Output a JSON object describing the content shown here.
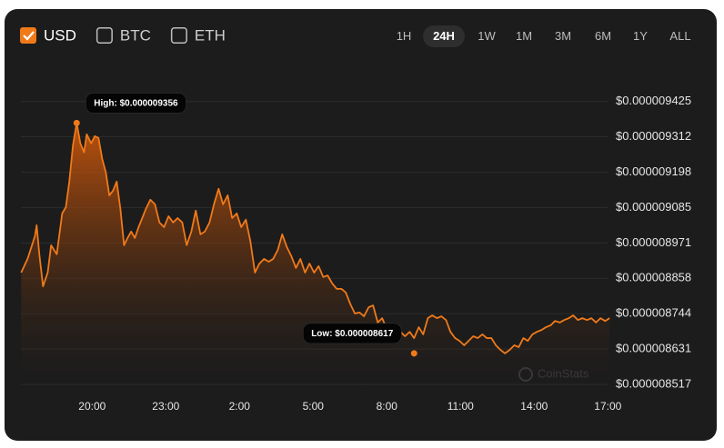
{
  "chart_data": {
    "type": "area",
    "currencies": [
      {
        "label": "USD",
        "checked": true
      },
      {
        "label": "BTC",
        "checked": false
      },
      {
        "label": "ETH",
        "checked": false
      }
    ],
    "ranges": [
      {
        "label": "1H",
        "active": false
      },
      {
        "label": "24H",
        "active": true
      },
      {
        "label": "1W",
        "active": false
      },
      {
        "label": "1M",
        "active": false
      },
      {
        "label": "3M",
        "active": false
      },
      {
        "label": "6M",
        "active": false
      },
      {
        "label": "1Y",
        "active": false
      },
      {
        "label": "ALL",
        "active": false
      }
    ],
    "color": "#f07a1a",
    "grid": true,
    "watermark": "CoinStats",
    "xlim": [
      17.1,
      41.1
    ],
    "ylim": [
      8.5e-06,
      9.5e-06
    ],
    "xticks": [
      {
        "value": 20,
        "label": "20:00"
      },
      {
        "value": 23,
        "label": "23:00"
      },
      {
        "value": 26,
        "label": "2:00"
      },
      {
        "value": 29,
        "label": "5:00"
      },
      {
        "value": 32,
        "label": "8:00"
      },
      {
        "value": 35,
        "label": "11:00"
      },
      {
        "value": 38,
        "label": "14:00"
      },
      {
        "value": 41,
        "label": "17:00"
      }
    ],
    "yticks": [
      {
        "value": 8.517e-06,
        "label": "$0.000008517"
      },
      {
        "value": 8.631e-06,
        "label": "$0.000008631"
      },
      {
        "value": 8.744e-06,
        "label": "$0.000008744"
      },
      {
        "value": 8.858e-06,
        "label": "$0.000008858"
      },
      {
        "value": 8.971e-06,
        "label": "$0.000008971"
      },
      {
        "value": 9.085e-06,
        "label": "$0.000009085"
      },
      {
        "value": 9.198e-06,
        "label": "$0.000009198"
      },
      {
        "value": 9.312e-06,
        "label": "$0.000009312"
      },
      {
        "value": 9.425e-06,
        "label": "$0.000009425"
      }
    ],
    "annotations": [
      {
        "label": "High: $0.000009356",
        "x": 19.37,
        "value": 9.356e-06
      },
      {
        "label": "Low: $0.000008617",
        "x": 33.11,
        "value": 8.617e-06
      }
    ],
    "x": [
      17.11,
      17.37,
      17.67,
      17.74,
      17.85,
      18.0,
      18.19,
      18.33,
      18.56,
      18.78,
      18.93,
      19.07,
      19.22,
      19.37,
      19.52,
      19.67,
      19.78,
      19.96,
      20.11,
      20.26,
      20.41,
      20.56,
      20.7,
      20.85,
      21.0,
      21.15,
      21.3,
      21.44,
      21.59,
      21.74,
      21.89,
      22.04,
      22.19,
      22.37,
      22.56,
      22.74,
      22.93,
      23.11,
      23.3,
      23.48,
      23.67,
      23.85,
      24.04,
      24.22,
      24.41,
      24.59,
      24.78,
      24.96,
      25.15,
      25.33,
      25.52,
      25.7,
      25.89,
      26.07,
      26.26,
      26.44,
      26.63,
      26.81,
      27.0,
      27.19,
      27.37,
      27.56,
      27.74,
      27.93,
      28.11,
      28.3,
      28.48,
      28.67,
      28.85,
      29.04,
      29.22,
      29.41,
      29.59,
      29.78,
      29.96,
      30.15,
      30.33,
      30.52,
      30.7,
      30.89,
      31.07,
      31.26,
      31.44,
      31.63,
      31.81,
      32.0,
      32.19,
      32.37,
      32.56,
      32.74,
      32.93,
      33.11,
      33.3,
      33.48,
      33.67,
      33.85,
      34.04,
      34.22,
      34.41,
      34.59,
      34.78,
      34.96,
      35.15,
      35.33,
      35.52,
      35.7,
      35.89,
      36.07,
      36.26,
      36.44,
      36.63,
      36.81,
      37.0,
      37.19,
      37.37,
      37.56,
      37.74,
      37.93,
      38.11,
      38.3,
      38.48,
      38.67,
      38.85,
      39.04,
      39.22,
      39.41,
      39.59,
      39.78,
      39.96,
      40.15,
      40.33,
      40.52,
      40.7,
      40.89,
      41.07
    ],
    "values": [
      8.876e-06,
      8.92e-06,
      8.993e-06,
      9.028e-06,
      8.935e-06,
      8.832e-06,
      8.876e-06,
      8.964e-06,
      8.935e-06,
      9.066e-06,
      9.086e-06,
      9.168e-06,
      9.285e-06,
      9.356e-06,
      9.291e-06,
      9.262e-06,
      9.32e-06,
      9.291e-06,
      9.314e-06,
      9.308e-06,
      9.241e-06,
      9.197e-06,
      9.124e-06,
      9.139e-06,
      9.168e-06,
      9.081e-06,
      8.964e-06,
      8.987e-06,
      9.008e-06,
      8.987e-06,
      9.022e-06,
      9.051e-06,
      9.081e-06,
      9.11e-06,
      9.095e-06,
      9.037e-06,
      9.022e-06,
      9.057e-06,
      9.037e-06,
      9.051e-06,
      9.037e-06,
      8.964e-06,
      9.008e-06,
      9.075e-06,
      8.999e-06,
      9.008e-06,
      9.037e-06,
      9.095e-06,
      9.145e-06,
      9.095e-06,
      9.124e-06,
      9.051e-06,
      9.066e-06,
      9.022e-06,
      9.046e-06,
      8.978e-06,
      8.876e-06,
      8.905e-06,
      8.92e-06,
      8.911e-06,
      8.92e-06,
      8.949e-06,
      8.999e-06,
      8.958e-06,
      8.929e-06,
      8.891e-06,
      8.92e-06,
      8.876e-06,
      8.905e-06,
      8.876e-06,
      8.897e-06,
      8.862e-06,
      8.867e-06,
      8.841e-06,
      8.824e-06,
      8.824e-06,
      8.812e-06,
      8.774e-06,
      8.745e-06,
      8.748e-06,
      8.736e-06,
      8.765e-06,
      8.771e-06,
      8.716e-06,
      8.73e-06,
      8.695e-06,
      8.707e-06,
      8.707e-06,
      8.686e-06,
      8.672e-06,
      8.686e-06,
      8.666e-06,
      8.701e-06,
      8.678e-06,
      8.73e-06,
      8.739e-06,
      8.73e-06,
      8.736e-06,
      8.724e-06,
      8.686e-06,
      8.666e-06,
      8.657e-06,
      8.643e-06,
      8.657e-06,
      8.672e-06,
      8.666e-06,
      8.678e-06,
      8.666e-06,
      8.666e-06,
      8.643e-06,
      8.628e-06,
      8.617e-06,
      8.628e-06,
      8.643e-06,
      8.637e-06,
      8.666e-06,
      8.657e-06,
      8.678e-06,
      8.686e-06,
      8.692e-06,
      8.701e-06,
      8.707e-06,
      8.721e-06,
      8.716e-06,
      8.724e-06,
      8.73e-06,
      8.739e-06,
      8.724e-06,
      8.73e-06,
      8.724e-06,
      8.73e-06,
      8.716e-06,
      8.73e-06,
      8.721e-06,
      8.73e-06
    ]
  }
}
